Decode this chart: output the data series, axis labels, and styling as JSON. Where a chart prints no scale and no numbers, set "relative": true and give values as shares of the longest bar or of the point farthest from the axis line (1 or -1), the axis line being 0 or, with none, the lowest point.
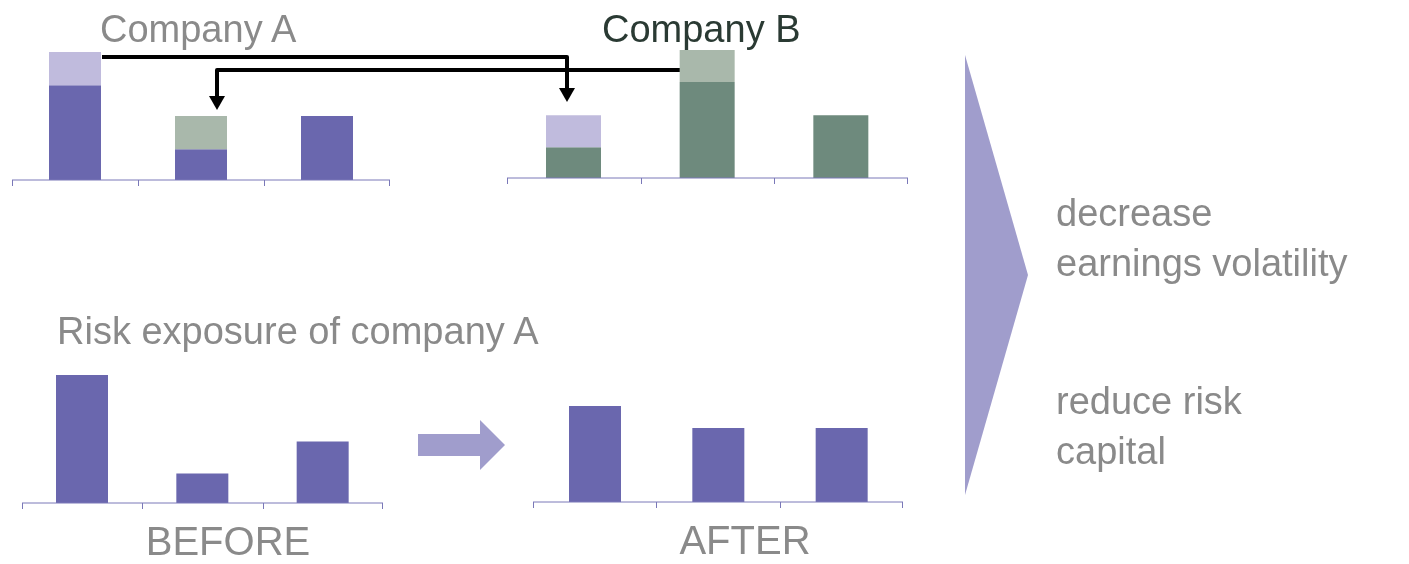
{
  "chart_data": [
    {
      "type": "bar",
      "title": "Company A",
      "categories": [
        null,
        null,
        null
      ],
      "relative": true,
      "stacked": true,
      "series": [
        {
          "color": "#6a67ae",
          "values": [
            0.74,
            0.24,
            0.5
          ]
        },
        {
          "colors": [
            "#c0bbdd",
            "#a9b8ab",
            null
          ],
          "values": [
            0.26,
            0.26,
            null
          ]
        }
      ]
    },
    {
      "type": "bar",
      "title": "Company B",
      "categories": [
        null,
        null,
        null
      ],
      "relative": true,
      "stacked": true,
      "series": [
        {
          "color": "#6e8a7d",
          "values": [
            0.24,
            0.75,
            0.49
          ]
        },
        {
          "colors": [
            "#c0bbdd",
            "#a9b8ab",
            null
          ],
          "values": [
            0.25,
            0.25,
            null
          ]
        }
      ]
    },
    {
      "type": "bar",
      "title": "Risk exposure of company A",
      "xlabel": "BEFORE",
      "categories": [
        null,
        null,
        null
      ],
      "relative": true,
      "series": [
        {
          "color": "#6a67ae",
          "values": [
            1,
            0.23,
            0.48
          ]
        }
      ]
    },
    {
      "type": "bar",
      "xlabel": "AFTER",
      "categories": [
        null,
        null,
        null
      ],
      "relative": true,
      "series": [
        {
          "color": "#6a67ae",
          "values": [
            1,
            0.77,
            0.77
          ]
        }
      ]
    },
    {
      "type": "other",
      "annotations": [
        "decrease\nearnings volatility",
        "reduce risk\ncapital"
      ]
    }
  ]
}
